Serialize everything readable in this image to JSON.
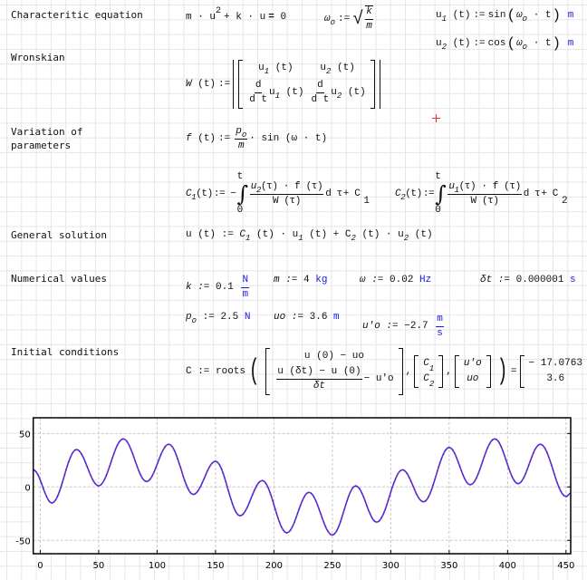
{
  "labels": {
    "char_eq": "Characteritic equation",
    "wronskian": "Wronskian",
    "variation": "Variation of\nparameters",
    "general": "General solution",
    "numerical": "Numerical values",
    "initial": "Initial conditions"
  },
  "char_eq": {
    "lhs_a": "m · u",
    "exp": "2",
    "lhs_b": "+ k · u",
    "eq": "=",
    "rhs": "0"
  },
  "omega0": {
    "name": "ω",
    "sub": "o",
    "assign": ":=",
    "num": "k",
    "den": "m"
  },
  "u1": {
    "name": "u",
    "sub": "1",
    "arg": "(t)",
    "assign": ":=",
    "fn": "sin",
    "inner": "ω",
    "inner_sub": "o",
    "inner_rest": "· t",
    "unit": "m"
  },
  "u2": {
    "name": "u",
    "sub": "2",
    "arg": "(t)",
    "assign": ":=",
    "fn": "cos",
    "inner": "ω",
    "inner_sub": "o",
    "inner_rest": "· t",
    "unit": "m"
  },
  "wronskian": {
    "name": "W",
    "arg": "(t)",
    "assign": ":=",
    "c11": "u",
    "c11_sub": "1",
    "c12": "u",
    "c12_sub": "2",
    "targ": "(t)",
    "d": "d",
    "dt": "d t"
  },
  "force": {
    "name": "f",
    "arg": "(t)",
    "assign": ":=",
    "num": "p",
    "num_sub": "o",
    "den": "m",
    "rest": "· sin (ω · t)"
  },
  "c1": {
    "name": "C",
    "sub": "1",
    "arg": "(t)",
    "assign": ":= −",
    "upper": "t",
    "lower": "0",
    "num": "u",
    "num_sub": "2",
    "num_rest": "(τ) · f (τ)",
    "den": "W (τ)",
    "dtau": "d τ",
    "plus": "+ C",
    "const_sub": "1"
  },
  "c2": {
    "name": "C",
    "sub": "2",
    "arg": "(t)",
    "assign": ":=",
    "upper": "t",
    "lower": "0",
    "num": "u",
    "num_sub": "1",
    "num_rest": "(τ) · f (τ)",
    "den": "W (τ)",
    "dtau": "d τ",
    "plus": "+ C",
    "const_sub": "2"
  },
  "general": {
    "lhs": "u (t) :=",
    "c1": "C",
    "c1_sub": "1",
    "t1": "(t) · u",
    "u1_sub": "1",
    "t2": "(t) + C",
    "c2_sub": "2",
    "t3": "(t) · u",
    "u2_sub": "2",
    "t4": "(t)"
  },
  "values": {
    "k": {
      "name": "k :=",
      "value": "0.1",
      "unit_num": "N",
      "unit_den": "m"
    },
    "m": {
      "name": "m :=",
      "value": "4",
      "unit": "kg"
    },
    "omega": {
      "name": "ω :=",
      "value": "0.02",
      "unit": "Hz"
    },
    "dt": {
      "name": "δt :=",
      "value": "0.000001",
      "unit": "s"
    },
    "po": {
      "name": "p",
      "sub": "o",
      "assign": ":=",
      "value": "2.5",
      "unit": "N"
    },
    "uo": {
      "name": "uo :=",
      "value": "3.6",
      "unit": "m"
    },
    "upo": {
      "name": "u'o :=",
      "value": "−2.7",
      "unit_num": "m",
      "unit_den": "s"
    }
  },
  "initial": {
    "lhs": "C := roots",
    "r1": "u (0) − uo",
    "r2_num": "u (δt) − u (0)",
    "r2_den": "δt",
    "r2_rest": "− u'o",
    "v1": "C",
    "v1_sub": "1",
    "v2": "C",
    "v2_sub": "2",
    "g1": "u'o",
    "g2": "uo",
    "eq": "=",
    "res1": "− 17.0763",
    "res2": "3.6"
  },
  "cursor_color": "#e8303a",
  "chart_data": {
    "type": "line",
    "xlim": [
      -6,
      454
    ],
    "ylim": [
      -62.5,
      64.7
    ],
    "xticks": [
      0,
      50,
      100,
      150,
      200,
      250,
      300,
      350,
      400,
      450
    ],
    "yticks": [
      -50,
      0,
      50
    ],
    "grid": true,
    "series_colors": [
      "#2b2bff",
      "#e0203a"
    ],
    "extrema": [
      [
        -6,
        16
      ],
      [
        10,
        -15
      ],
      [
        31,
        35
      ],
      [
        50,
        1
      ],
      [
        71,
        45
      ],
      [
        91,
        5
      ],
      [
        110,
        40
      ],
      [
        131,
        -7
      ],
      [
        150,
        24
      ],
      [
        171,
        -27
      ],
      [
        190,
        6
      ],
      [
        211,
        -43
      ],
      [
        230,
        -5
      ],
      [
        250,
        -45
      ],
      [
        270,
        1
      ],
      [
        288,
        -33
      ],
      [
        310,
        16
      ],
      [
        328,
        -14
      ],
      [
        350,
        37
      ],
      [
        368,
        2
      ],
      [
        389,
        45
      ],
      [
        409,
        3
      ],
      [
        428,
        40
      ],
      [
        450,
        -9
      ],
      [
        454,
        -6
      ]
    ]
  }
}
